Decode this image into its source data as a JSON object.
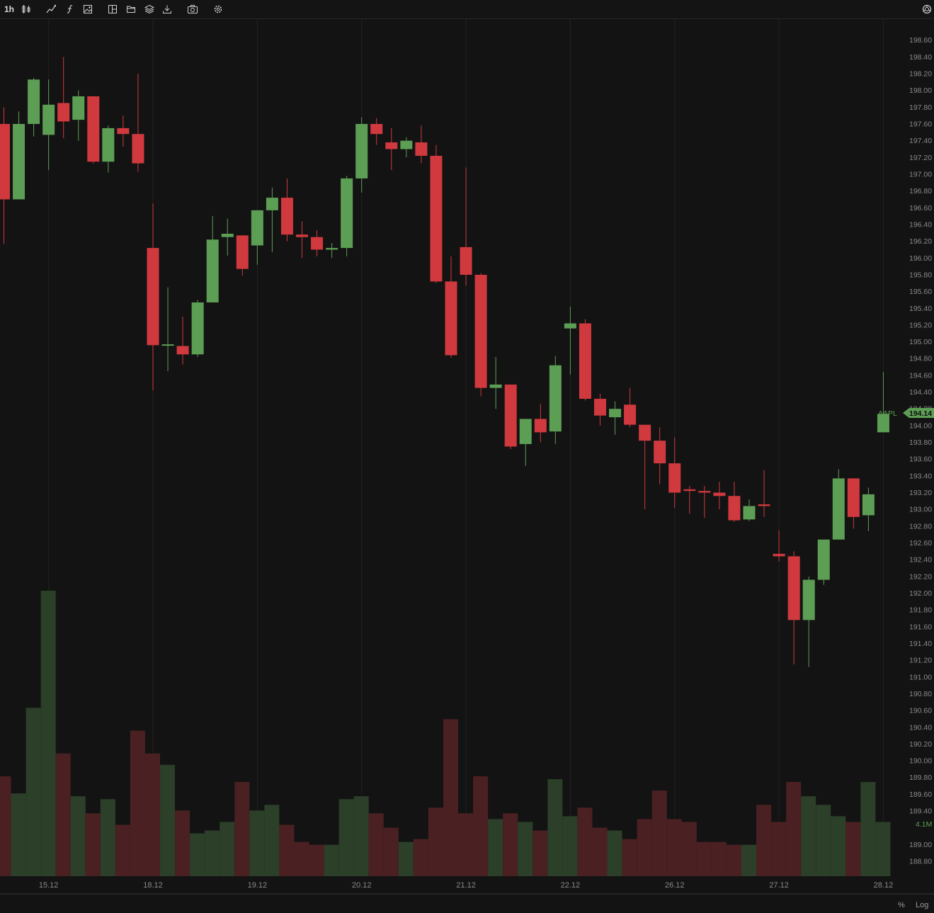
{
  "toolbar": {
    "timeframe": "1h",
    "icons": [
      "candles-icon",
      "line-drawing-icon",
      "function-icon",
      "image-icon",
      "layout-icon",
      "folder-icon",
      "layers-icon",
      "download-icon",
      "camera-icon",
      "settings-icon",
      "openai-icon"
    ]
  },
  "footer": {
    "percent_label": "%",
    "log_label": "Log"
  },
  "colors": {
    "background": "#131313",
    "up": "#5d9e55",
    "down": "#d0393e",
    "vol_up": "#2b3f29",
    "vol_down": "#4a2022",
    "axis_text": "#8a8a8a",
    "grid": "#222222"
  },
  "chart_data": {
    "type": "candlestick",
    "symbol": "AAPL",
    "last_price": "194.14",
    "volume_label": "4.1M",
    "ylim": [
      188.6,
      198.7
    ],
    "y_ticks": [
      "198.60",
      "198.40",
      "198.20",
      "198.00",
      "197.80",
      "197.60",
      "197.40",
      "197.20",
      "197.00",
      "196.80",
      "196.60",
      "196.40",
      "196.20",
      "196.00",
      "195.80",
      "195.60",
      "195.40",
      "195.20",
      "195.00",
      "194.80",
      "194.60",
      "194.40",
      "194.20",
      "194.00",
      "193.80",
      "193.60",
      "193.40",
      "193.20",
      "193.00",
      "192.80",
      "192.60",
      "192.40",
      "192.20",
      "192.00",
      "191.80",
      "191.60",
      "191.40",
      "191.20",
      "191.00",
      "190.80",
      "190.60",
      "190.40",
      "190.20",
      "190.00",
      "189.80",
      "189.60",
      "189.40",
      "189.00",
      "188.80"
    ],
    "x_ticks": [
      {
        "label": "15.12",
        "index": 3
      },
      {
        "label": "18.12",
        "index": 10
      },
      {
        "label": "19.12",
        "index": 17
      },
      {
        "label": "20.12",
        "index": 24
      },
      {
        "label": "21.12",
        "index": 31
      },
      {
        "label": "22.12",
        "index": 38
      },
      {
        "label": "26.12",
        "index": 45
      },
      {
        "label": "27.12",
        "index": 52
      },
      {
        "label": "28.12",
        "index": 59
      }
    ],
    "candles": [
      {
        "o": 197.6,
        "h": 197.8,
        "l": 196.17,
        "c": 196.7
      },
      {
        "o": 196.7,
        "h": 197.75,
        "l": 196.7,
        "c": 197.6
      },
      {
        "o": 197.6,
        "h": 198.15,
        "l": 197.45,
        "c": 198.13
      },
      {
        "o": 197.47,
        "h": 198.13,
        "l": 197.05,
        "c": 197.83
      },
      {
        "o": 197.85,
        "h": 198.4,
        "l": 197.43,
        "c": 197.63
      },
      {
        "o": 197.65,
        "h": 198.0,
        "l": 197.4,
        "c": 197.93
      },
      {
        "o": 197.93,
        "h": 197.93,
        "l": 197.13,
        "c": 197.15
      },
      {
        "o": 197.15,
        "h": 197.58,
        "l": 197.02,
        "c": 197.55
      },
      {
        "o": 197.55,
        "h": 197.7,
        "l": 197.33,
        "c": 197.48
      },
      {
        "o": 197.48,
        "h": 198.2,
        "l": 197.03,
        "c": 197.13
      },
      {
        "o": 196.12,
        "h": 196.65,
        "l": 194.42,
        "c": 194.96
      },
      {
        "o": 194.96,
        "h": 195.65,
        "l": 194.65,
        "c": 194.97
      },
      {
        "o": 194.95,
        "h": 195.3,
        "l": 194.73,
        "c": 194.85
      },
      {
        "o": 194.85,
        "h": 195.5,
        "l": 194.82,
        "c": 195.47
      },
      {
        "o": 195.47,
        "h": 196.5,
        "l": 195.47,
        "c": 196.22
      },
      {
        "o": 196.25,
        "h": 196.47,
        "l": 196.03,
        "c": 196.29
      },
      {
        "o": 196.27,
        "h": 196.27,
        "l": 195.79,
        "c": 195.87
      },
      {
        "o": 196.15,
        "h": 196.57,
        "l": 195.92,
        "c": 196.57
      },
      {
        "o": 196.57,
        "h": 196.84,
        "l": 196.07,
        "c": 196.72
      },
      {
        "o": 196.72,
        "h": 196.95,
        "l": 196.2,
        "c": 196.28
      },
      {
        "o": 196.28,
        "h": 196.44,
        "l": 196.0,
        "c": 196.25
      },
      {
        "o": 196.25,
        "h": 196.33,
        "l": 196.02,
        "c": 196.1
      },
      {
        "o": 196.1,
        "h": 196.18,
        "l": 196.0,
        "c": 196.12
      },
      {
        "o": 196.12,
        "h": 196.98,
        "l": 196.02,
        "c": 196.95
      },
      {
        "o": 196.95,
        "h": 197.68,
        "l": 196.78,
        "c": 197.6
      },
      {
        "o": 197.6,
        "h": 197.67,
        "l": 197.35,
        "c": 197.48
      },
      {
        "o": 197.38,
        "h": 197.55,
        "l": 197.05,
        "c": 197.3
      },
      {
        "o": 197.3,
        "h": 197.44,
        "l": 197.2,
        "c": 197.4
      },
      {
        "o": 197.38,
        "h": 197.58,
        "l": 197.13,
        "c": 197.22
      },
      {
        "o": 197.22,
        "h": 197.35,
        "l": 195.7,
        "c": 195.72
      },
      {
        "o": 195.72,
        "h": 196.02,
        "l": 194.81,
        "c": 194.84
      },
      {
        "o": 196.13,
        "h": 197.08,
        "l": 195.67,
        "c": 195.8
      },
      {
        "o": 195.8,
        "h": 195.82,
        "l": 194.35,
        "c": 194.45
      },
      {
        "o": 194.45,
        "h": 194.82,
        "l": 194.2,
        "c": 194.49
      },
      {
        "o": 194.49,
        "h": 194.49,
        "l": 193.72,
        "c": 193.75
      },
      {
        "o": 193.78,
        "h": 194.05,
        "l": 193.52,
        "c": 194.08
      },
      {
        "o": 194.08,
        "h": 194.26,
        "l": 193.8,
        "c": 193.92
      },
      {
        "o": 193.93,
        "h": 194.83,
        "l": 193.78,
        "c": 194.72
      },
      {
        "o": 195.16,
        "h": 195.42,
        "l": 194.61,
        "c": 195.22
      },
      {
        "o": 195.22,
        "h": 195.27,
        "l": 194.3,
        "c": 194.32
      },
      {
        "o": 194.32,
        "h": 194.38,
        "l": 194.0,
        "c": 194.12
      },
      {
        "o": 194.1,
        "h": 194.29,
        "l": 193.89,
        "c": 194.2
      },
      {
        "o": 194.25,
        "h": 194.45,
        "l": 193.98,
        "c": 194.01
      },
      {
        "o": 194.01,
        "h": 194.01,
        "l": 193.0,
        "c": 193.82
      },
      {
        "o": 193.82,
        "h": 193.98,
        "l": 193.3,
        "c": 193.55
      },
      {
        "o": 193.55,
        "h": 193.86,
        "l": 193.02,
        "c": 193.2
      },
      {
        "o": 193.24,
        "h": 193.28,
        "l": 192.95,
        "c": 193.22
      },
      {
        "o": 193.22,
        "h": 193.28,
        "l": 192.9,
        "c": 193.2
      },
      {
        "o": 193.2,
        "h": 193.33,
        "l": 193.0,
        "c": 193.16
      },
      {
        "o": 193.16,
        "h": 193.33,
        "l": 192.85,
        "c": 192.87
      },
      {
        "o": 192.88,
        "h": 193.12,
        "l": 192.86,
        "c": 193.04
      },
      {
        "o": 193.06,
        "h": 193.47,
        "l": 192.91,
        "c": 193.04
      },
      {
        "o": 192.47,
        "h": 192.75,
        "l": 192.38,
        "c": 192.44
      },
      {
        "o": 192.44,
        "h": 192.5,
        "l": 191.15,
        "c": 191.68
      },
      {
        "o": 191.68,
        "h": 192.2,
        "l": 191.12,
        "c": 192.16
      },
      {
        "o": 192.16,
        "h": 192.63,
        "l": 192.1,
        "c": 192.64
      },
      {
        "o": 192.64,
        "h": 193.48,
        "l": 192.64,
        "c": 193.37
      },
      {
        "o": 193.37,
        "h": 193.37,
        "l": 192.77,
        "c": 192.91
      },
      {
        "o": 192.93,
        "h": 193.26,
        "l": 192.74,
        "c": 193.18
      },
      {
        "o": 193.92,
        "h": 194.64,
        "l": 193.98,
        "c": 194.14
      }
    ],
    "volume": [
      {
        "v": 0.35,
        "dir": "down"
      },
      {
        "v": 0.29,
        "dir": "up"
      },
      {
        "v": 0.59,
        "dir": "up"
      },
      {
        "v": 1.0,
        "dir": "up"
      },
      {
        "v": 0.43,
        "dir": "down"
      },
      {
        "v": 0.28,
        "dir": "up"
      },
      {
        "v": 0.22,
        "dir": "down"
      },
      {
        "v": 0.27,
        "dir": "up"
      },
      {
        "v": 0.18,
        "dir": "down"
      },
      {
        "v": 0.51,
        "dir": "down"
      },
      {
        "v": 0.43,
        "dir": "down"
      },
      {
        "v": 0.39,
        "dir": "up"
      },
      {
        "v": 0.23,
        "dir": "down"
      },
      {
        "v": 0.15,
        "dir": "up"
      },
      {
        "v": 0.16,
        "dir": "up"
      },
      {
        "v": 0.19,
        "dir": "up"
      },
      {
        "v": 0.33,
        "dir": "down"
      },
      {
        "v": 0.23,
        "dir": "up"
      },
      {
        "v": 0.25,
        "dir": "up"
      },
      {
        "v": 0.18,
        "dir": "down"
      },
      {
        "v": 0.12,
        "dir": "down"
      },
      {
        "v": 0.11,
        "dir": "down"
      },
      {
        "v": 0.11,
        "dir": "up"
      },
      {
        "v": 0.27,
        "dir": "up"
      },
      {
        "v": 0.28,
        "dir": "up"
      },
      {
        "v": 0.22,
        "dir": "down"
      },
      {
        "v": 0.17,
        "dir": "down"
      },
      {
        "v": 0.12,
        "dir": "up"
      },
      {
        "v": 0.13,
        "dir": "down"
      },
      {
        "v": 0.24,
        "dir": "down"
      },
      {
        "v": 0.55,
        "dir": "down"
      },
      {
        "v": 0.22,
        "dir": "down"
      },
      {
        "v": 0.35,
        "dir": "down"
      },
      {
        "v": 0.2,
        "dir": "up"
      },
      {
        "v": 0.22,
        "dir": "down"
      },
      {
        "v": 0.19,
        "dir": "up"
      },
      {
        "v": 0.16,
        "dir": "down"
      },
      {
        "v": 0.34,
        "dir": "up"
      },
      {
        "v": 0.21,
        "dir": "up"
      },
      {
        "v": 0.24,
        "dir": "down"
      },
      {
        "v": 0.17,
        "dir": "down"
      },
      {
        "v": 0.16,
        "dir": "up"
      },
      {
        "v": 0.13,
        "dir": "down"
      },
      {
        "v": 0.2,
        "dir": "down"
      },
      {
        "v": 0.3,
        "dir": "down"
      },
      {
        "v": 0.2,
        "dir": "down"
      },
      {
        "v": 0.19,
        "dir": "down"
      },
      {
        "v": 0.12,
        "dir": "down"
      },
      {
        "v": 0.12,
        "dir": "down"
      },
      {
        "v": 0.11,
        "dir": "down"
      },
      {
        "v": 0.11,
        "dir": "up"
      },
      {
        "v": 0.25,
        "dir": "down"
      },
      {
        "v": 0.19,
        "dir": "down"
      },
      {
        "v": 0.33,
        "dir": "down"
      },
      {
        "v": 0.28,
        "dir": "up"
      },
      {
        "v": 0.25,
        "dir": "up"
      },
      {
        "v": 0.21,
        "dir": "up"
      },
      {
        "v": 0.19,
        "dir": "down"
      },
      {
        "v": 0.33,
        "dir": "up"
      },
      {
        "v": 0.19,
        "dir": "up"
      }
    ]
  }
}
